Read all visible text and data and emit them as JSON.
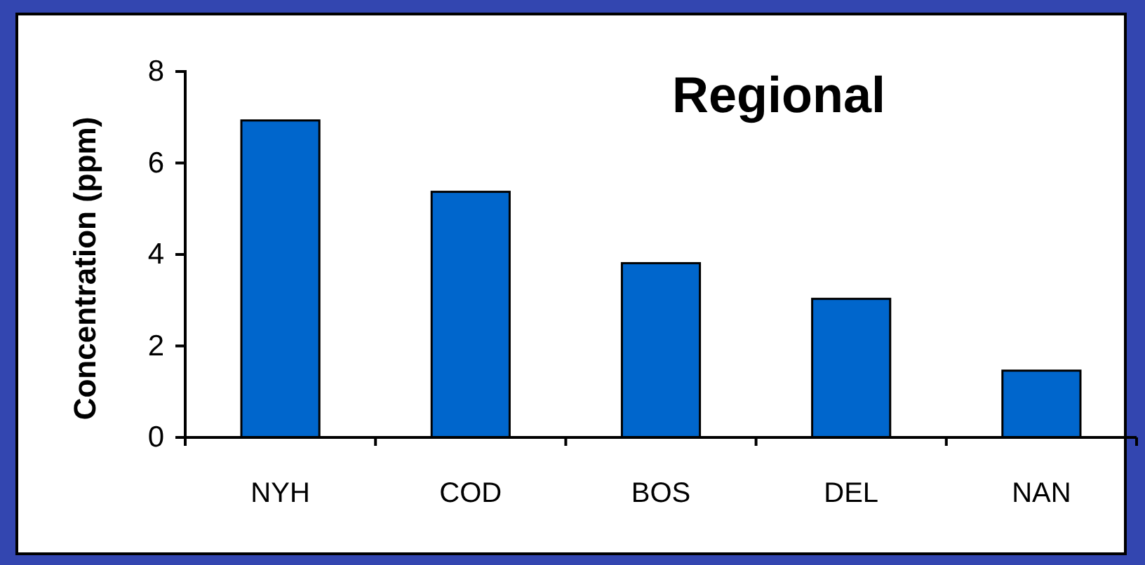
{
  "chart_data": {
    "type": "bar",
    "title": "Regional",
    "ylabel": "Concentration (ppm)",
    "categories": [
      "NYH",
      "COD",
      "BOS",
      "DEL",
      "NAN"
    ],
    "values": [
      6.93,
      5.37,
      3.81,
      3.03,
      1.46
    ],
    "color": "#0066cc",
    "ylim": [
      0,
      8
    ],
    "yticks": [
      0,
      2,
      4,
      6,
      8
    ],
    "grid": false
  }
}
